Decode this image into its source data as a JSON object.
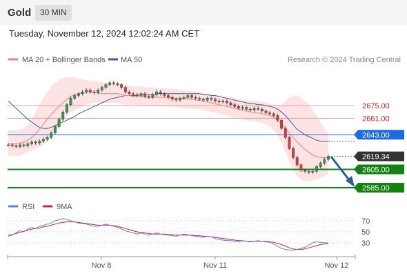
{
  "header": {
    "symbol": "Gold",
    "interval": "30 MIN",
    "datetime": "Tuesday, November 12, 2024 12:02:24 AM CET"
  },
  "legend": {
    "ma20": "MA 20 + Bollinger Bands",
    "ma50": "MA 50",
    "credit": "Research © 2024 Trading Central",
    "colors": {
      "ma20": "#f08080",
      "ma50": "#3a5f96",
      "band": "#fde3e3"
    }
  },
  "price_levels": [
    {
      "label": "2675.00",
      "value": 2675,
      "kind": "resistance",
      "color": "#f4a0a0"
    },
    {
      "label": "2661.00",
      "value": 2661,
      "kind": "resistance",
      "color": "#f4a0a0"
    },
    {
      "label": "2643.00",
      "value": 2643,
      "kind": "pivot",
      "color": "#1e6be0"
    },
    {
      "label": "2619.34",
      "value": 2619.34,
      "kind": "last",
      "color": "#333333"
    },
    {
      "label": "2605.00",
      "value": 2605,
      "kind": "support",
      "color": "#128212"
    },
    {
      "label": "2585.00",
      "value": 2585,
      "kind": "support",
      "color": "#128212"
    }
  ],
  "rsi": {
    "legend_rsi": "RSI",
    "legend_ma": "9MA",
    "colors": {
      "rsi": "#5b7fe0",
      "ma": "#d9202a"
    },
    "levels": [
      70,
      50,
      30
    ],
    "level_labels": [
      "70",
      "50",
      "30"
    ]
  },
  "x_axis": {
    "ticks": [
      "Nov 8",
      "Nov 11",
      "Nov 12"
    ]
  },
  "chart_data": {
    "type": "candlestick",
    "instrument": "Gold",
    "timeframe": "30 MIN",
    "close_series": [
      2632,
      2631,
      2630,
      2632,
      2631,
      2633,
      2635,
      2634,
      2636,
      2638,
      2640,
      2645,
      2652,
      2660,
      2668,
      2676,
      2683,
      2686,
      2688,
      2690,
      2692,
      2690,
      2689,
      2692,
      2695,
      2698,
      2700,
      2699,
      2698,
      2695,
      2690,
      2688,
      2687,
      2686,
      2688,
      2685,
      2684,
      2687,
      2690,
      2688,
      2686,
      2684,
      2682,
      2681,
      2683,
      2684,
      2686,
      2684,
      2683,
      2682,
      2681,
      2683,
      2682,
      2680,
      2679,
      2680,
      2678,
      2676,
      2674,
      2672,
      2673,
      2671,
      2670,
      2672,
      2671,
      2669,
      2667,
      2666,
      2664,
      2659,
      2650,
      2640,
      2628,
      2618,
      2610,
      2604,
      2603,
      2602,
      2603,
      2608,
      2612,
      2616,
      2619.34
    ],
    "ma20": [
      2633,
      2633,
      2633,
      2634,
      2635,
      2637,
      2640,
      2644,
      2649,
      2655,
      2660,
      2665,
      2670,
      2674,
      2678,
      2682,
      2685,
      2687,
      2688,
      2689,
      2690,
      2690,
      2690,
      2689,
      2688,
      2688,
      2688,
      2688,
      2688,
      2687,
      2686,
      2686,
      2685,
      2685,
      2685,
      2685,
      2684,
      2684,
      2684,
      2684,
      2684,
      2684,
      2683,
      2683,
      2683,
      2683,
      2682,
      2682,
      2681,
      2681,
      2680,
      2679,
      2678,
      2677,
      2676,
      2675,
      2674,
      2673,
      2672,
      2671,
      2670,
      2669,
      2668,
      2667,
      2667,
      2666,
      2665,
      2664,
      2662,
      2659,
      2655,
      2650,
      2645,
      2640,
      2635,
      2631,
      2627,
      2624,
      2621,
      2619,
      2618,
      2618,
      2618
    ],
    "ma50": [
      2680,
      2676,
      2672,
      2668,
      2664,
      2660,
      2657,
      2654,
      2651,
      2650,
      2650,
      2651,
      2653,
      2655,
      2657,
      2659,
      2661,
      2663,
      2666,
      2668,
      2670,
      2672,
      2674,
      2676,
      2678,
      2680,
      2682,
      2683,
      2684,
      2685,
      2686,
      2686,
      2686,
      2686,
      2687,
      2687,
      2687,
      2687,
      2688,
      2688,
      2688,
      2688,
      2688,
      2688,
      2688,
      2688,
      2688,
      2688,
      2688,
      2688,
      2687,
      2687,
      2686,
      2686,
      2685,
      2684,
      2683,
      2682,
      2681,
      2680,
      2679,
      2678,
      2677,
      2677,
      2676,
      2676,
      2675,
      2674,
      2673,
      2671,
      2668,
      2664,
      2659,
      2654,
      2649,
      2646,
      2643,
      2641,
      2639,
      2637,
      2636,
      2636,
      2636
    ],
    "band_upper": [
      2648,
      2648,
      2648,
      2649,
      2650,
      2654,
      2660,
      2668,
      2676,
      2684,
      2690,
      2696,
      2700,
      2703,
      2705,
      2706,
      2706,
      2706,
      2705,
      2704,
      2703,
      2702,
      2702,
      2701,
      2701,
      2700,
      2700,
      2700,
      2699,
      2698,
      2697,
      2697,
      2696,
      2696,
      2696,
      2695,
      2695,
      2695,
      2694,
      2694,
      2694,
      2694,
      2693,
      2693,
      2692,
      2692,
      2691,
      2691,
      2690,
      2690,
      2689,
      2688,
      2688,
      2687,
      2686,
      2685,
      2684,
      2684,
      2683,
      2682,
      2682,
      2681,
      2680,
      2680,
      2680,
      2679,
      2678,
      2677,
      2676,
      2676,
      2676,
      2680,
      2684,
      2686,
      2686,
      2684,
      2680,
      2676,
      2670,
      2664,
      2657,
      2650,
      2645
    ],
    "band_lower": [
      2620,
      2620,
      2620,
      2620,
      2622,
      2624,
      2626,
      2628,
      2630,
      2632,
      2636,
      2640,
      2646,
      2652,
      2658,
      2664,
      2668,
      2670,
      2672,
      2674,
      2676,
      2677,
      2678,
      2678,
      2678,
      2678,
      2678,
      2678,
      2678,
      2677,
      2676,
      2676,
      2676,
      2675,
      2675,
      2675,
      2674,
      2674,
      2674,
      2674,
      2674,
      2674,
      2673,
      2673,
      2673,
      2672,
      2672,
      2672,
      2671,
      2671,
      2670,
      2669,
      2668,
      2667,
      2666,
      2665,
      2664,
      2663,
      2662,
      2661,
      2660,
      2659,
      2658,
      2658,
      2657,
      2656,
      2654,
      2652,
      2648,
      2642,
      2634,
      2624,
      2614,
      2604,
      2598,
      2594,
      2592,
      2592,
      2593,
      2594,
      2596,
      2598,
      2600
    ],
    "rsi": [
      42,
      44,
      48,
      52,
      50,
      55,
      58,
      56,
      60,
      62,
      64,
      66,
      70,
      72,
      74,
      73,
      70,
      68,
      66,
      65,
      64,
      62,
      60,
      60,
      62,
      64,
      62,
      60,
      58,
      55,
      52,
      50,
      48,
      46,
      48,
      46,
      44,
      46,
      48,
      46,
      45,
      44,
      43,
      42,
      44,
      46,
      45,
      43,
      42,
      41,
      40,
      42,
      41,
      38,
      36,
      35,
      34,
      34,
      33,
      32,
      34,
      33,
      32,
      33,
      34,
      33,
      32,
      31,
      28,
      24,
      20,
      18,
      17,
      17,
      18,
      20,
      22,
      26,
      30,
      32,
      31,
      30,
      30
    ],
    "rsi_ma": [
      44,
      45,
      47,
      49,
      51,
      53,
      55,
      56,
      57,
      59,
      60,
      62,
      64,
      66,
      67,
      68,
      68,
      68,
      67,
      66,
      65,
      64,
      63,
      62,
      62,
      62,
      62,
      61,
      60,
      58,
      56,
      54,
      52,
      50,
      49,
      48,
      47,
      46,
      46,
      46,
      46,
      45,
      45,
      44,
      44,
      44,
      44,
      44,
      43,
      43,
      42,
      42,
      41,
      40,
      39,
      38,
      37,
      36,
      35,
      34,
      34,
      33,
      33,
      33,
      33,
      33,
      33,
      32,
      31,
      29,
      27,
      24,
      21,
      19,
      18,
      18,
      19,
      21,
      23,
      25,
      27,
      28,
      29
    ],
    "y_axis_rsi": [
      70,
      50,
      30
    ],
    "x_ticks": [
      "Nov 8",
      "Nov 11",
      "Nov 12"
    ]
  }
}
